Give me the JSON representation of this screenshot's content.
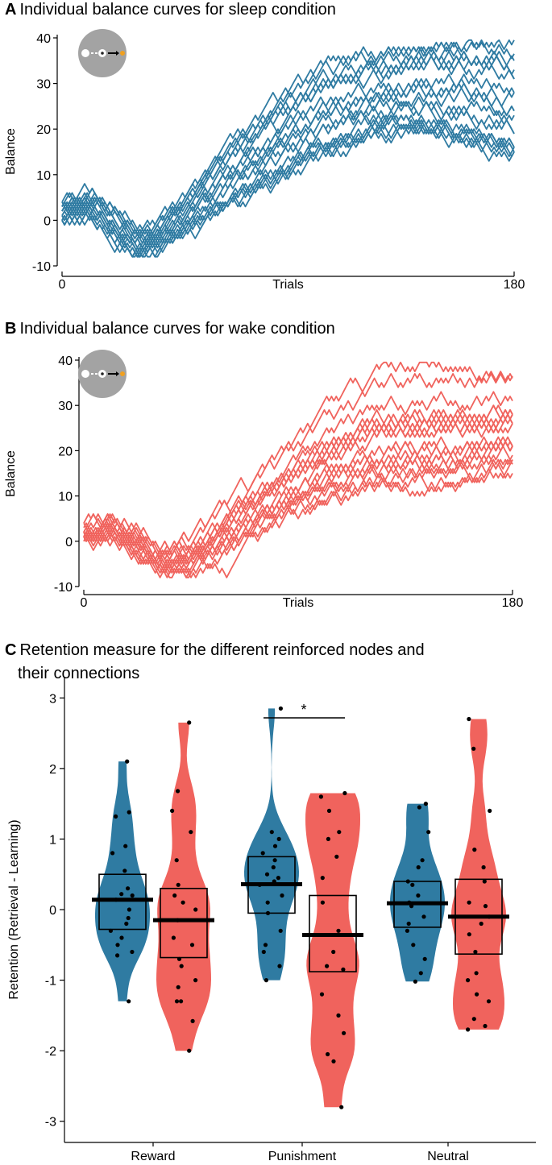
{
  "panels": {
    "a": {
      "letter": "A",
      "title": "Individual balance curves for sleep condition"
    },
    "b": {
      "letter": "B",
      "title": "Individual balance curves for wake condition"
    },
    "c": {
      "letter": "C",
      "title_line1": "Retention measure for the different reinforced nodes and",
      "title_line2": "their connections"
    }
  },
  "colors": {
    "sleep": "#2f7ba2",
    "wake": "#f0635d",
    "inset_bg": "#a3a3a3",
    "inset_goal": "#f0a020"
  },
  "icons": [
    "node-graph-icon",
    "node-graph-icon"
  ],
  "chart_data": [
    {
      "type": "line",
      "id": "sleep",
      "title": "Individual balance curves for sleep condition",
      "xlabel": "Trials",
      "ylabel": "Balance",
      "xlim": [
        0,
        180
      ],
      "ylim": [
        -10,
        40
      ],
      "xticks": [
        0,
        180
      ],
      "yticks": [
        -10,
        0,
        10,
        20,
        30,
        40
      ],
      "n_series": 20,
      "color": "#2f7ba2",
      "trajectory_summary": {
        "trials": [
          0,
          10,
          25,
          30,
          45,
          60,
          80,
          100,
          120,
          140,
          160,
          180
        ],
        "mean_balance": [
          2,
          4,
          -3,
          -6,
          -1,
          8,
          17,
          25,
          28,
          29,
          28,
          26
        ],
        "min_balance": [
          0,
          1,
          -7,
          -8,
          -4,
          2,
          8,
          14,
          18,
          20,
          17,
          14
        ],
        "max_balance": [
          4,
          6,
          0,
          -3,
          4,
          14,
          25,
          33,
          36,
          38,
          39,
          37
        ]
      }
    },
    {
      "type": "line",
      "id": "wake",
      "title": "Individual balance curves for wake condition",
      "xlabel": "Trials",
      "ylabel": "Balance",
      "xlim": [
        0,
        180
      ],
      "ylim": [
        -10,
        40
      ],
      "xticks": [
        0,
        180
      ],
      "yticks": [
        -10,
        0,
        10,
        20,
        30,
        40
      ],
      "n_series": 20,
      "color": "#f0635d",
      "trajectory_summary": {
        "trials": [
          0,
          10,
          25,
          30,
          45,
          60,
          80,
          100,
          120,
          140,
          160,
          180
        ],
        "mean_balance": [
          2,
          4,
          -2,
          -5,
          -3,
          4,
          12,
          18,
          21,
          23,
          25,
          25
        ],
        "min_balance": [
          0,
          1,
          -5,
          -7,
          -7,
          -2,
          4,
          8,
          10,
          10,
          12,
          15
        ],
        "max_balance": [
          4,
          5,
          2,
          -2,
          2,
          10,
          20,
          30,
          38,
          40,
          38,
          37
        ]
      }
    },
    {
      "type": "violin",
      "id": "retention",
      "title": "Retention measure for the different reinforced nodes and their connections",
      "xlabel": "",
      "ylabel": "Retention (Retrieval - Learning)",
      "ylim": [
        -3.3,
        3.3
      ],
      "yticks": [
        -3,
        -2,
        -1,
        0,
        1,
        2,
        3
      ],
      "categories": [
        "Reward",
        "Punishment",
        "Neutral"
      ],
      "significance": {
        "between": [
          "Punishment-sleep",
          "Punishment-wake"
        ],
        "label": "*"
      },
      "groups": [
        {
          "category": "Reward",
          "condition": "sleep",
          "mean": 0.14,
          "box": [
            -0.28,
            0.5
          ],
          "range": [
            -1.3,
            2.1
          ],
          "points": [
            2.1,
            1.38,
            1.32,
            0.9,
            0.8,
            0.55,
            0.3,
            0.22,
            0.2,
            0.14,
            0.0,
            -0.12,
            -0.2,
            -0.3,
            -0.4,
            -0.5,
            -0.6,
            -0.65,
            -1.3
          ]
        },
        {
          "category": "Reward",
          "condition": "wake",
          "mean": -0.15,
          "box": [
            -0.68,
            0.3
          ],
          "range": [
            -2.0,
            2.65
          ],
          "points": [
            2.65,
            1.68,
            1.4,
            1.1,
            0.7,
            0.35,
            0.2,
            0.1,
            0.0,
            -0.15,
            -0.4,
            -0.5,
            -0.7,
            -0.8,
            -1.0,
            -1.1,
            -1.3,
            -1.3,
            -1.58,
            -2.0
          ]
        },
        {
          "category": "Punishment",
          "condition": "sleep",
          "mean": 0.36,
          "box": [
            -0.05,
            0.75
          ],
          "range": [
            -1.0,
            2.85
          ],
          "points": [
            2.85,
            1.1,
            1.0,
            0.9,
            0.8,
            0.7,
            0.6,
            0.5,
            0.45,
            0.4,
            0.35,
            0.2,
            0.1,
            -0.05,
            -0.3,
            -0.5,
            -0.6,
            -0.8,
            -1.0
          ]
        },
        {
          "category": "Punishment",
          "condition": "wake",
          "mean": -0.36,
          "box": [
            -0.88,
            0.2
          ],
          "range": [
            -2.8,
            1.65
          ],
          "points": [
            1.65,
            1.6,
            1.4,
            1.1,
            1.0,
            0.75,
            0.45,
            0.1,
            -0.3,
            -0.6,
            -0.8,
            -0.85,
            -1.2,
            -1.5,
            -1.75,
            -2.05,
            -2.15,
            -2.8
          ]
        },
        {
          "category": "Neutral",
          "condition": "sleep",
          "mean": 0.09,
          "box": [
            -0.25,
            0.4
          ],
          "range": [
            -1.02,
            1.5
          ],
          "points": [
            1.5,
            1.45,
            1.1,
            0.7,
            0.6,
            0.4,
            0.35,
            0.2,
            0.1,
            0.05,
            -0.1,
            -0.2,
            -0.3,
            -0.5,
            -0.7,
            -0.9,
            -1.02
          ]
        },
        {
          "category": "Neutral",
          "condition": "wake",
          "mean": -0.1,
          "box": [
            -0.63,
            0.43
          ],
          "range": [
            -1.7,
            2.7
          ],
          "points": [
            2.7,
            2.28,
            1.4,
            0.85,
            0.6,
            0.4,
            0.1,
            0.05,
            -0.1,
            -0.2,
            -0.35,
            -0.6,
            -0.9,
            -1.0,
            -1.2,
            -1.3,
            -1.55,
            -1.65,
            -1.7
          ]
        }
      ]
    }
  ]
}
